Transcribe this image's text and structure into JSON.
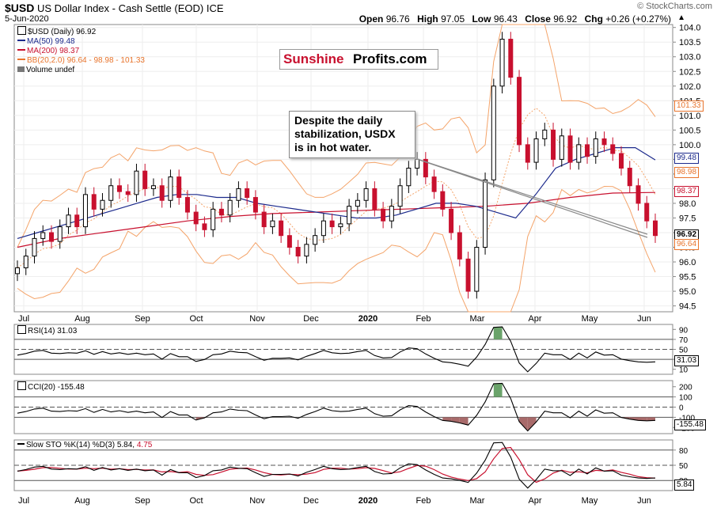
{
  "header": {
    "symbol": "$USD",
    "name": "US Dollar Index - Cash Settle (EOD) ICE",
    "date": "5-Jun-2020",
    "open_label": "Open",
    "open": "96.76",
    "high_label": "High",
    "high": "97.05",
    "low_label": "Low",
    "low": "96.43",
    "close_label": "Close",
    "close": "96.92",
    "chg_label": "Chg",
    "chg": "+0.26 (+0.27%)",
    "brand": "© StockCharts.com"
  },
  "legend": {
    "price": "$USD (Daily) 96.92",
    "ma50": "MA(50) 99.48",
    "ma200": "MA(200) 98.37",
    "bb": "BB(20,2.0) 96.64 - 98.98 - 101.33",
    "volume": "Volume undef"
  },
  "logo": {
    "part1": "Sunshine",
    "part2": "Profits.com"
  },
  "annotation": {
    "line1": "Despite the daily",
    "line2": "stabilization, USDX",
    "line3": "is in hot water."
  },
  "colors": {
    "up": "#000000",
    "down": "#c8102e",
    "ma50": "#1c2a8c",
    "ma200": "#c8102e",
    "bb": "#f4a46a"
  },
  "price_tags": {
    "last": "96.92",
    "bb_lower": "96.64",
    "bb_mid": "98.98",
    "bb_upper": "101.33",
    "ma50": "99.48",
    "ma200": "98.37"
  },
  "x_axis_labels": [
    "Jul",
    "Aug",
    "Sep",
    "Oct",
    "Nov",
    "Dec",
    "2020",
    "Feb",
    "Mar",
    "Apr",
    "May",
    "Jun"
  ],
  "panels": {
    "rsi": {
      "label": "RSI(14) 31.03",
      "ticks": [
        "90",
        "70",
        "50",
        "30",
        "10"
      ],
      "value": "31.03"
    },
    "cci": {
      "label": "CCI(20) -155.48",
      "ticks": [
        "200",
        "100",
        "0",
        "-100",
        "-200"
      ],
      "value": "-155.48"
    },
    "sto": {
      "label_a": "Slow STO %K(14) %D(3) 5.84,",
      "label_b": "4.75",
      "ticks": [
        "80",
        "50",
        "20"
      ],
      "value": "5.84"
    }
  },
  "chart_data": {
    "type": "candlestick",
    "title": "$USD US Dollar Index - Cash Settle (EOD) ICE",
    "y_ticks": [
      94.5,
      95.0,
      95.5,
      96.0,
      96.5,
      97.0,
      97.5,
      98.0,
      98.5,
      99.0,
      99.5,
      100.0,
      100.5,
      101.0,
      101.5,
      102.0,
      102.5,
      103.0,
      103.5,
      104.0
    ],
    "ylim": [
      94.3,
      104.1
    ],
    "months": [
      "Jul",
      "Aug",
      "Sep",
      "Oct",
      "Nov",
      "Dec",
      "2020",
      "Feb",
      "Mar",
      "Apr",
      "May",
      "Jun"
    ],
    "close_series": [
      95.8,
      96.2,
      96.8,
      97.0,
      96.7,
      97.2,
      97.6,
      97.2,
      98.3,
      97.8,
      98.1,
      98.6,
      98.4,
      98.3,
      99.1,
      98.5,
      98.6,
      98.1,
      98.9,
      98.2,
      97.7,
      97.3,
      97.1,
      97.8,
      97.6,
      98.1,
      98.5,
      98.2,
      97.7,
      97.2,
      97.4,
      96.9,
      96.5,
      96.2,
      96.6,
      96.9,
      97.4,
      97.2,
      97.3,
      97.9,
      98.1,
      98.5,
      97.8,
      97.4,
      97.9,
      98.6,
      99.2,
      99.5,
      98.9,
      98.4,
      97.8,
      97.0,
      96.1,
      95.0,
      96.5,
      98.8,
      102.0,
      103.6,
      102.3,
      100.0,
      99.4,
      100.2,
      100.5,
      99.5,
      100.3,
      99.4,
      100.0,
      99.6,
      100.2,
      100.0,
      99.7,
      99.2,
      98.6,
      98.0,
      97.4,
      96.9
    ],
    "ma50": [
      96.8,
      97.0,
      97.2,
      97.4,
      97.6,
      97.8,
      98.0,
      98.2,
      98.3,
      98.3,
      98.2,
      98.2,
      98.0,
      97.9,
      97.8,
      97.7,
      97.6,
      97.5,
      97.5,
      97.6,
      97.8,
      98.0,
      98.0,
      97.9,
      97.7,
      97.5,
      98.3,
      99.2,
      99.5,
      99.7,
      99.9,
      99.9,
      99.48
    ],
    "ma200": [
      96.5,
      96.8,
      97.0,
      97.2,
      97.4,
      97.55,
      97.65,
      97.7,
      97.75,
      97.8,
      97.85,
      97.9,
      98.0,
      98.2,
      98.35,
      98.37
    ],
    "y_axis": {
      "y_is_reciprocal": false
    }
  }
}
